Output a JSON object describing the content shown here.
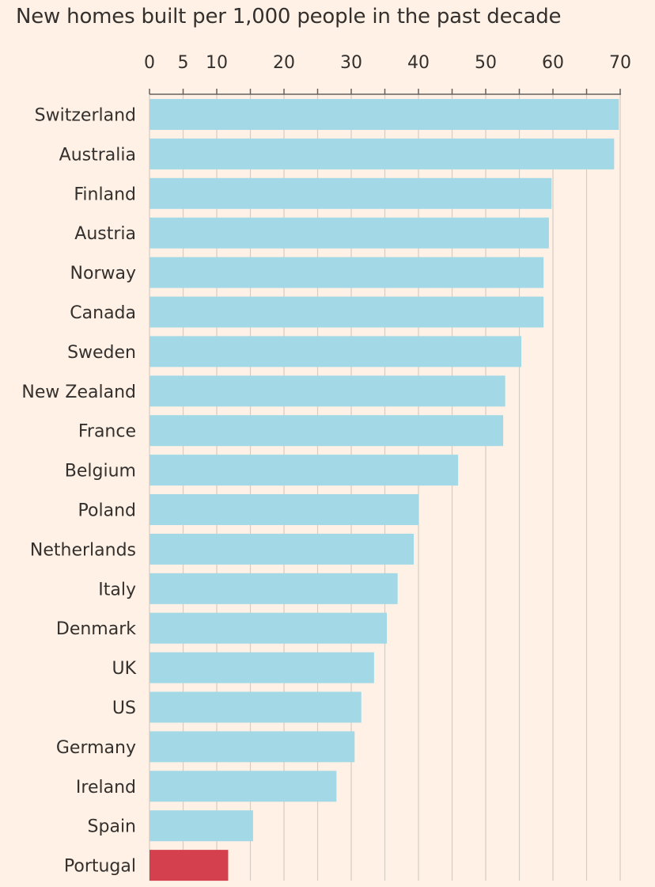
{
  "chart_data": {
    "type": "bar",
    "orientation": "horizontal",
    "title": "New homes built per 1,000 people in the past decade",
    "xlabel": "",
    "ylabel": "",
    "xlim": [
      0,
      70
    ],
    "x_ticks": [
      0,
      5,
      10,
      20,
      30,
      40,
      50,
      60,
      70
    ],
    "gridlines": [
      0,
      5,
      10,
      15,
      20,
      25,
      30,
      35,
      40,
      45,
      50,
      55,
      60,
      65,
      70
    ],
    "grid": true,
    "axis_position": "top",
    "categories": [
      "Switzerland",
      "Australia",
      "Finland",
      "Austria",
      "Norway",
      "Canada",
      "Sweden",
      "New Zealand",
      "France",
      "Belgium",
      "Poland",
      "Netherlands",
      "Italy",
      "Denmark",
      "UK",
      "US",
      "Germany",
      "Ireland",
      "Spain",
      "Portugal"
    ],
    "values": [
      69.8,
      69.1,
      59.8,
      59.4,
      58.6,
      58.6,
      55.3,
      52.9,
      52.6,
      45.9,
      40.0,
      39.3,
      36.9,
      35.3,
      33.4,
      31.5,
      30.5,
      27.8,
      15.4,
      11.7
    ],
    "highlight": "Portugal",
    "colors": {
      "bar": "#A3D9E6",
      "highlight": "#D5404E",
      "grid": "#D5CCC3",
      "axis": "#66605C",
      "text": "#33302E",
      "background": "#FFF1E5"
    }
  }
}
